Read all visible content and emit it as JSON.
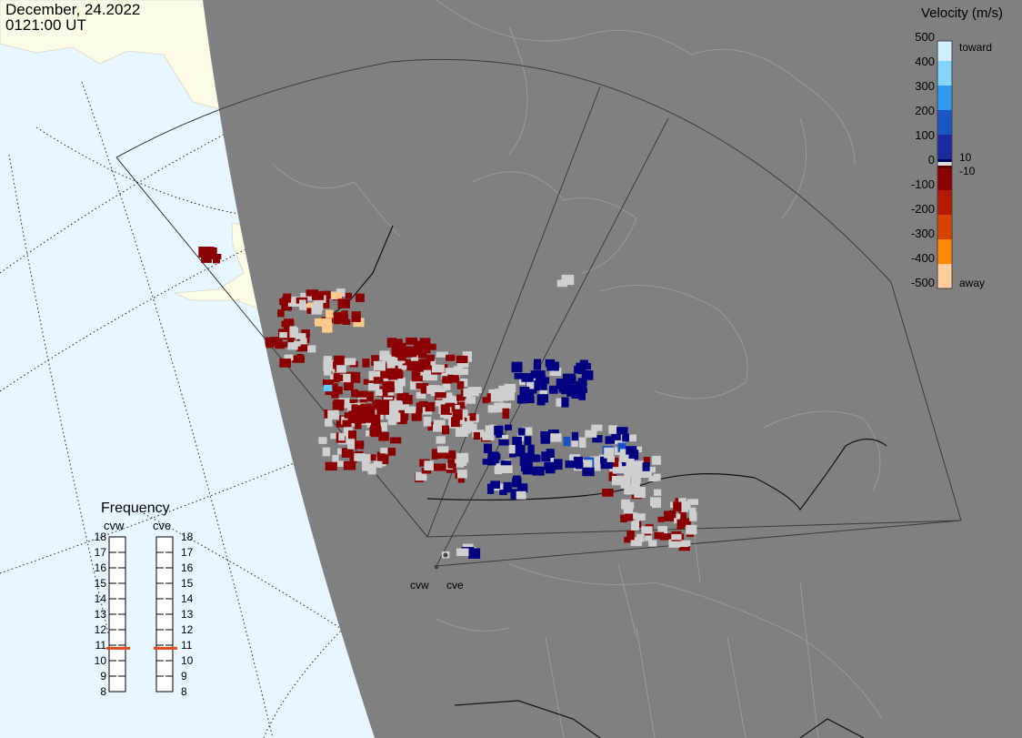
{
  "header": {
    "date": "December, 24.2022",
    "time": "0121:00 UT"
  },
  "velocity_legend": {
    "title": "Velocity (m/s)",
    "toward_label": "toward",
    "away_label": "away",
    "small_pos_label": "10",
    "small_neg_label": "-10",
    "ticks": [
      "500",
      "400",
      "300",
      "200",
      "100",
      "0",
      "-100",
      "-200",
      "-300",
      "-400",
      "-500"
    ]
  },
  "frequency_panel": {
    "title": "Frequency",
    "radars": [
      {
        "name": "cvw",
        "frequency_mhz": 10.8
      },
      {
        "name": "cve",
        "frequency_mhz": 10.8
      }
    ],
    "scale": [
      "18",
      "17",
      "16",
      "15",
      "14",
      "13",
      "12",
      "11",
      "10",
      "9",
      "8"
    ]
  },
  "sites": [
    {
      "name": "cvw"
    },
    {
      "name": "cve"
    }
  ],
  "colors": {
    "ocean": "#e8f6ff",
    "land_daylight": "#fdfbe6",
    "night": "#808080",
    "night_border": "#999999",
    "toward_dark": "#000080",
    "toward_mid": "#1a4fc8",
    "toward_light": "#66c8ff",
    "away_dark": "#8b0000",
    "away_light": "#ffc98a",
    "ground_scatter": "#cfcfcf",
    "frequency_marker": "#e8471b"
  }
}
